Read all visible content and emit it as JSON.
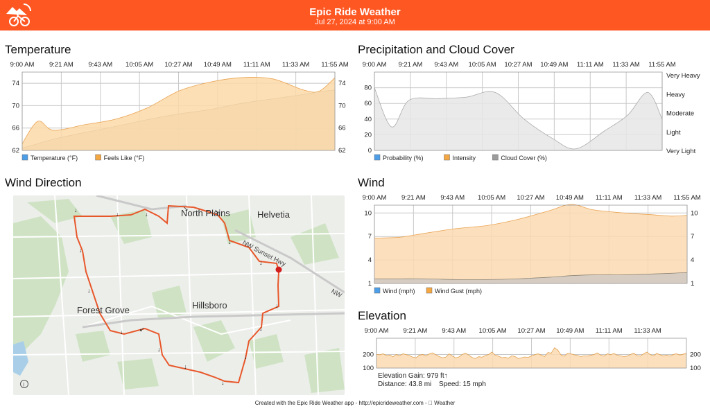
{
  "header": {
    "title": "Epic Ride Weather",
    "subtitle": "Jul 27, 2024 at 9:00 AM",
    "accent": "#ff5722"
  },
  "time_ticks": [
    "9:00 AM",
    "9:21 AM",
    "9:43 AM",
    "10:05 AM",
    "10:27 AM",
    "10:49 AM",
    "11:11 AM",
    "11:33 AM",
    "11:55 AM"
  ],
  "elevation_time_ticks": [
    "9:00 AM",
    "9:21 AM",
    "9:43 AM",
    "10:05 AM",
    "10:27 AM",
    "10:49 AM",
    "11:11 AM",
    "11:33 AM"
  ],
  "sections": {
    "temperature": "Temperature",
    "precipitation": "Precipitation and Cloud Cover",
    "wind_direction": "Wind Direction",
    "wind": "Wind",
    "elevation": "Elevation"
  },
  "map": {
    "labels": [
      "North Plains",
      "Helvetia",
      "Forest Grove",
      "Hillsboro",
      "NW Sunset Hwy",
      "NW"
    ],
    "info_icon": "info-icon"
  },
  "elevation_stats": {
    "gain": "Elevation Gain: 979 ft↑",
    "distance": "Distance: 43.8 mi",
    "speed": "Speed: 15 mph"
  },
  "footer": "Created with the Epic Ride Weather app - http://epicrideweather.com -  Weather",
  "chart_data": [
    {
      "id": "temperature",
      "type": "area",
      "x": [
        0,
        0.05,
        0.1,
        0.2,
        0.3,
        0.4,
        0.5,
        0.6,
        0.7,
        0.8,
        0.9,
        0.95,
        1.0
      ],
      "ylim": [
        62,
        76
      ],
      "yticks": [
        62,
        66,
        70,
        74
      ],
      "series": [
        {
          "name": "Temperature (°F)",
          "color": "#d4cdbf",
          "legend_color": "#4d9ee8",
          "values": [
            62.4,
            63.2,
            64.0,
            65.2,
            66.3,
            67.5,
            68.5,
            69.3,
            70.4,
            71.2,
            72.0,
            72.5,
            72.8
          ]
        },
        {
          "name": "Feels Like (°F)",
          "color": "#fbd9a8",
          "legend_color": "#f5a742",
          "values": [
            63.2,
            67.2,
            65.6,
            66.6,
            67.6,
            69.6,
            72.6,
            74.2,
            75.0,
            74.8,
            72.8,
            72.6,
            75.0
          ]
        }
      ],
      "legend": [
        "Temperature (°F)",
        "Feels Like (°F)"
      ]
    },
    {
      "id": "precipitation",
      "type": "area",
      "x": [
        0,
        0.06,
        0.12,
        0.22,
        0.32,
        0.42,
        0.52,
        0.62,
        0.7,
        0.8,
        0.88,
        0.95,
        1.0
      ],
      "ylim": [
        0,
        100
      ],
      "yticks": [
        0,
        20,
        40,
        60,
        80
      ],
      "right_labels": [
        "Very Heavy",
        "Heavy",
        "Moderate",
        "Light",
        "Very Light"
      ],
      "series": [
        {
          "name": "Cloud Cover (%)",
          "color": "#e6e6e6",
          "legend_color": "#9c9c9c",
          "values": [
            80,
            30,
            64,
            66,
            68,
            74,
            40,
            15,
            2,
            25,
            45,
            74,
            40
          ]
        }
      ],
      "legend": [
        "Probability (%)",
        "Intensity",
        "Cloud Cover (%)"
      ],
      "legend_colors": [
        "#4d9ee8",
        "#f5a742",
        "#9c9c9c"
      ]
    },
    {
      "id": "wind",
      "type": "area",
      "x": [
        0,
        0.08,
        0.16,
        0.26,
        0.36,
        0.46,
        0.56,
        0.63,
        0.7,
        0.8,
        0.88,
        0.95,
        1.0
      ],
      "ylim": [
        1,
        11
      ],
      "yticks": [
        1,
        4,
        7,
        10
      ],
      "series": [
        {
          "name": "Wind Gust (mph)",
          "color": "#fbd9b0",
          "legend_color": "#f5a742",
          "values": [
            6.8,
            6.9,
            7.4,
            8.0,
            8.4,
            9.2,
            10.3,
            11.1,
            10.4,
            10.0,
            9.8,
            9.6,
            9.7
          ]
        },
        {
          "name": "Wind (mph)",
          "color": "#cfc9c2",
          "legend_color": "#4d9ee8",
          "values": [
            1.6,
            1.6,
            1.6,
            1.5,
            1.5,
            1.6,
            1.8,
            2.0,
            2.1,
            2.1,
            2.2,
            2.3,
            2.4
          ]
        }
      ],
      "legend": [
        "Wind (mph)",
        "Wind Gust (mph)"
      ]
    },
    {
      "id": "elevation",
      "type": "area",
      "ylim": [
        100,
        320
      ],
      "yticks": [
        100,
        200
      ],
      "series": [
        {
          "name": "Elevation",
          "color": "#fbd9b0",
          "values": [
            200,
            198,
            205,
            192,
            196,
            183,
            200,
            190,
            205,
            199,
            192,
            180,
            176,
            195,
            200,
            190,
            205,
            212,
            198,
            185,
            176,
            180,
            205,
            190,
            175,
            182,
            200,
            210,
            195,
            178,
            170,
            184,
            180,
            192,
            200,
            218,
            195,
            188,
            176,
            180,
            172,
            190,
            185,
            170,
            176,
            182,
            178,
            190,
            198,
            205,
            195,
            185,
            215,
            210,
            250,
            232,
            195,
            188,
            210,
            205,
            198,
            192,
            185,
            190,
            188,
            195,
            200,
            212,
            195,
            188,
            205,
            198,
            208,
            195,
            190,
            185,
            188,
            200,
            210,
            192,
            188,
            205,
            218,
            200,
            190,
            208,
            198,
            190,
            196,
            188,
            200,
            205,
            196,
            202,
            210
          ]
        }
      ]
    }
  ]
}
